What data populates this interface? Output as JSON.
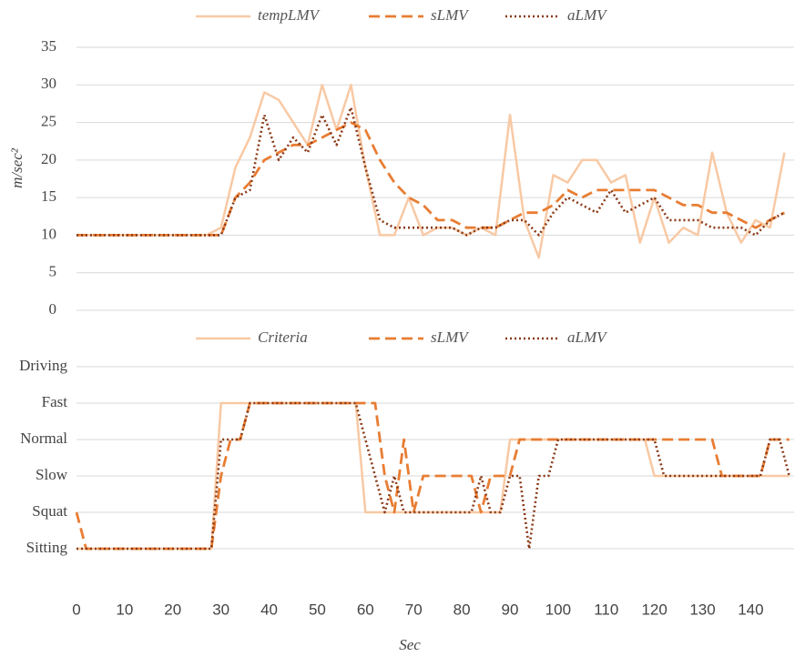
{
  "chart_data": [
    {
      "type": "line",
      "y_label": "m/sec²",
      "x": [
        0,
        3,
        6,
        9,
        12,
        15,
        18,
        21,
        24,
        27,
        30,
        33,
        36,
        39,
        42,
        45,
        48,
        51,
        54,
        57,
        60,
        63,
        66,
        69,
        72,
        75,
        78,
        81,
        84,
        87,
        90,
        93,
        96,
        99,
        102,
        105,
        108,
        111,
        114,
        117,
        120,
        123,
        126,
        129,
        132,
        135,
        138,
        141,
        144,
        147
      ],
      "series": [
        {
          "name": "tempLMV",
          "color": "#f8c9a4",
          "style": "solid",
          "values": [
            10,
            10,
            10,
            10,
            10,
            10,
            10,
            10,
            10,
            10,
            11,
            19,
            23,
            29,
            28,
            25,
            22,
            30,
            24,
            30,
            19,
            10,
            10,
            15,
            10,
            11,
            11,
            10,
            11,
            10,
            26,
            12,
            7,
            18,
            17,
            20,
            20,
            17,
            18,
            9,
            15,
            9,
            11,
            10,
            21,
            13,
            9,
            12,
            11,
            21
          ]
        },
        {
          "name": "sLMV",
          "color": "#e87d33",
          "style": "dashed",
          "values": [
            10,
            10,
            10,
            10,
            10,
            10,
            10,
            10,
            10,
            10,
            10,
            15,
            17,
            20,
            21,
            22,
            22,
            23,
            24,
            25,
            24,
            20,
            17,
            15,
            14,
            12,
            12,
            11,
            11,
            11,
            12,
            13,
            13,
            14,
            16,
            15,
            16,
            16,
            16,
            16,
            16,
            15,
            14,
            14,
            13,
            13,
            12,
            11,
            12,
            13
          ]
        },
        {
          "name": "aLMV",
          "color": "#8a3a17",
          "style": "dotted",
          "values": [
            10,
            10,
            10,
            10,
            10,
            10,
            10,
            10,
            10,
            10,
            10,
            15,
            16,
            26,
            20,
            23,
            21,
            26,
            22,
            27,
            19,
            12,
            11,
            11,
            11,
            11,
            11,
            10,
            11,
            11,
            12,
            12,
            10,
            13,
            15,
            14,
            13,
            16,
            13,
            14,
            15,
            12,
            12,
            12,
            11,
            11,
            11,
            10,
            12,
            13
          ]
        }
      ],
      "xlim": [
        0,
        149
      ],
      "ylim": [
        0,
        35
      ],
      "yticks": [
        0,
        5,
        10,
        15,
        20,
        25,
        30,
        35
      ],
      "grid": true
    },
    {
      "type": "line",
      "x_label": "Sec",
      "x": [
        0,
        2,
        4,
        6,
        8,
        10,
        12,
        14,
        16,
        18,
        20,
        22,
        24,
        26,
        28,
        30,
        32,
        34,
        36,
        38,
        40,
        42,
        44,
        46,
        48,
        50,
        52,
        54,
        56,
        58,
        60,
        62,
        64,
        66,
        68,
        70,
        72,
        74,
        76,
        78,
        80,
        82,
        84,
        86,
        88,
        90,
        92,
        94,
        96,
        98,
        100,
        102,
        104,
        106,
        108,
        110,
        112,
        114,
        116,
        118,
        120,
        122,
        124,
        126,
        128,
        130,
        132,
        134,
        136,
        138,
        140,
        142,
        144,
        146,
        148
      ],
      "series": [
        {
          "name": "Criteria",
          "color": "#f8c9a4",
          "style": "solid",
          "values": [
            0,
            0,
            0,
            0,
            0,
            0,
            0,
            0,
            0,
            0,
            0,
            0,
            0,
            0,
            0,
            4,
            4,
            4,
            4,
            4,
            4,
            4,
            4,
            4,
            4,
            4,
            4,
            4,
            4,
            4,
            1,
            1,
            1,
            1,
            1,
            1,
            1,
            1,
            1,
            1,
            1,
            1,
            1,
            1,
            1,
            3,
            3,
            3,
            3,
            3,
            3,
            3,
            3,
            3,
            3,
            3,
            3,
            3,
            3,
            3,
            2,
            2,
            2,
            2,
            2,
            2,
            2,
            2,
            2,
            2,
            2,
            2,
            2,
            2,
            2
          ]
        },
        {
          "name": "sLMV",
          "color": "#e87d33",
          "style": "dashed",
          "values": [
            1,
            0,
            0,
            0,
            0,
            0,
            0,
            0,
            0,
            0,
            0,
            0,
            0,
            0,
            0,
            2,
            3,
            3,
            4,
            4,
            4,
            4,
            4,
            4,
            4,
            4,
            4,
            4,
            4,
            4,
            4,
            4,
            2,
            1,
            3,
            1,
            2,
            2,
            2,
            2,
            2,
            2,
            1,
            2,
            2,
            2,
            3,
            3,
            3,
            3,
            3,
            3,
            3,
            3,
            3,
            3,
            3,
            3,
            3,
            3,
            3,
            3,
            3,
            3,
            3,
            3,
            3,
            2,
            2,
            2,
            2,
            2,
            3,
            3,
            3
          ]
        },
        {
          "name": "aLMV",
          "color": "#8a3a17",
          "style": "dotted",
          "values": [
            0,
            0,
            0,
            0,
            0,
            0,
            0,
            0,
            0,
            0,
            0,
            0,
            0,
            0,
            0,
            3,
            3,
            3,
            4,
            4,
            4,
            4,
            4,
            4,
            4,
            4,
            4,
            4,
            4,
            4,
            3,
            2,
            1,
            2,
            1,
            1,
            1,
            1,
            1,
            1,
            1,
            1,
            2,
            1,
            1,
            2,
            2,
            0,
            2,
            2,
            3,
            3,
            3,
            3,
            3,
            3,
            3,
            3,
            3,
            3,
            3,
            2,
            2,
            2,
            2,
            2,
            2,
            2,
            2,
            2,
            2,
            2,
            3,
            3,
            2
          ]
        }
      ],
      "xlim": [
        0,
        149
      ],
      "ylim": [
        0,
        5
      ],
      "xticks": [
        0,
        10,
        20,
        30,
        40,
        50,
        60,
        70,
        80,
        90,
        100,
        110,
        120,
        130,
        140
      ],
      "yticks": [
        {
          "value": 0,
          "label": "Sitting"
        },
        {
          "value": 1,
          "label": "Squat"
        },
        {
          "value": 2,
          "label": "Slow"
        },
        {
          "value": 3,
          "label": "Normal"
        },
        {
          "value": 4,
          "label": "Fast"
        },
        {
          "value": 5,
          "label": "Driving"
        }
      ],
      "grid": true
    }
  ]
}
